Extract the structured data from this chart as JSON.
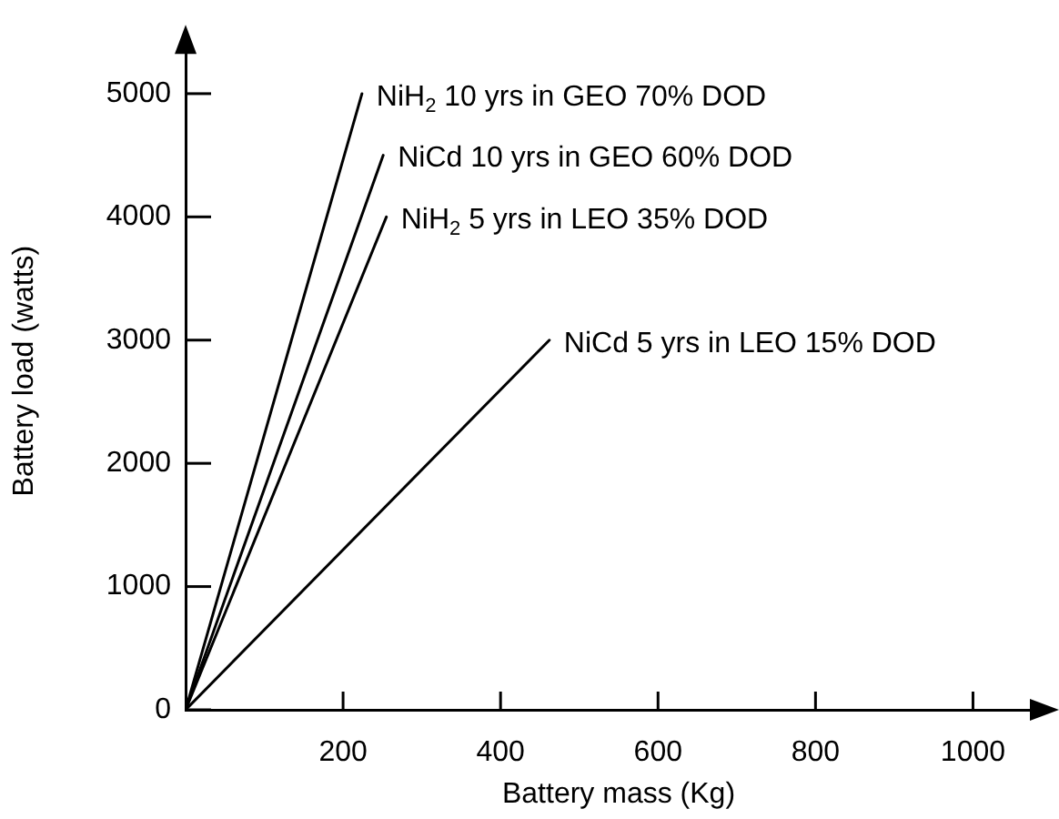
{
  "chart_data": {
    "type": "line",
    "xlabel": "Battery mass (Kg)",
    "ylabel": "Battery load (watts)",
    "xlim": [
      0,
      1100
    ],
    "xticks": [
      200,
      400,
      600,
      800,
      1000
    ],
    "ylim": [
      0,
      5500
    ],
    "yticks": [
      0,
      1000,
      2000,
      3000,
      4000,
      5000
    ],
    "series": [
      {
        "name": "NiH$_{2}$ 10 yrs in GEO 70% DOD",
        "color": "#000000",
        "x": [
          0,
          224
        ],
        "values": [
          0,
          5000
        ]
      },
      {
        "name": "NiCd 10 yrs in GEO 60% DOD",
        "color": "#000000",
        "x": [
          0,
          251
        ],
        "values": [
          0,
          4500
        ]
      },
      {
        "name": "NiH$_{2}$ 5 yrs in LEO 35% DOD",
        "color": "#000000",
        "x": [
          0,
          255
        ],
        "values": [
          0,
          4000
        ]
      },
      {
        "name": "NiCd 5 yrs in LEO 15% DOD",
        "color": "#000000",
        "x": [
          0,
          462
        ],
        "values": [
          0,
          3000
        ]
      }
    ],
    "legend": false,
    "grid": false,
    "marker": "none",
    "line_style": "solid"
  }
}
